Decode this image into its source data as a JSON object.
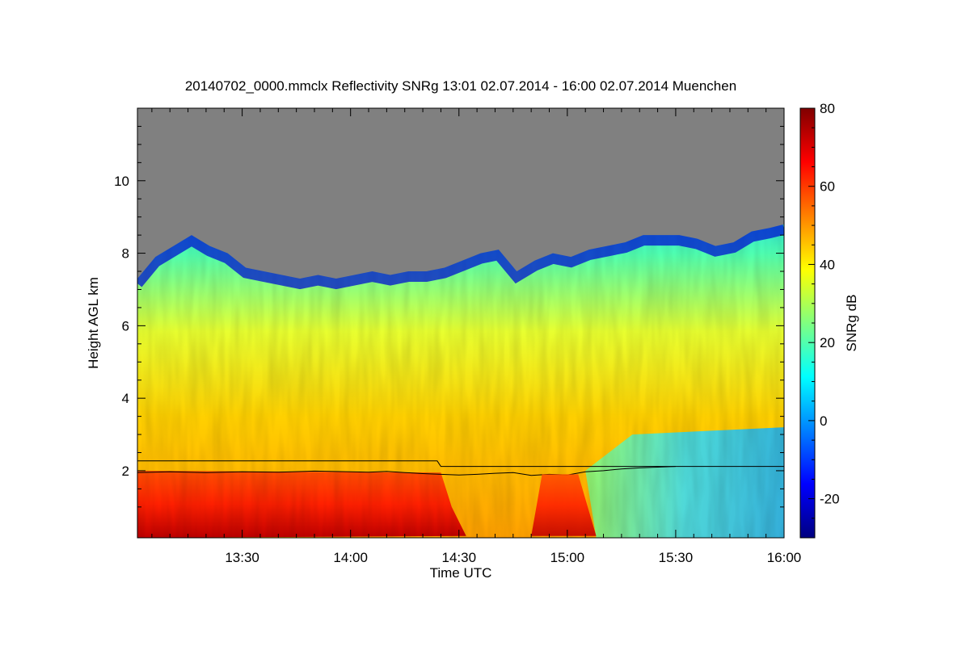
{
  "title": "20140702_0000.mmclx Reflectivity SNRg   13:01 02.07.2014 - 16:00 02.07.2014 Muenchen",
  "colors": {
    "no_signal_gray": "#808080",
    "colormap": [
      "#000080",
      "#0000ff",
      "#0080ff",
      "#00ffff",
      "#80ff80",
      "#ffff00",
      "#ff8000",
      "#ff0000",
      "#800000"
    ]
  },
  "chart_data": {
    "type": "heatmap",
    "xlabel": "Time UTC",
    "ylabel": "Height AGL km",
    "x_range": [
      "13:01",
      "16:00"
    ],
    "xlim_minutes": [
      781,
      960
    ],
    "x_ticks": [
      {
        "minute": 810,
        "label": "13:30"
      },
      {
        "minute": 840,
        "label": "14:00"
      },
      {
        "minute": 870,
        "label": "14:30"
      },
      {
        "minute": 900,
        "label": "15:00"
      },
      {
        "minute": 930,
        "label": "15:30"
      },
      {
        "minute": 960,
        "label": "16:00"
      }
    ],
    "ylim": [
      0.15,
      12
    ],
    "y_ticks": [
      {
        "value": 2,
        "label": "2"
      },
      {
        "value": 4,
        "label": "4"
      },
      {
        "value": 6,
        "label": "6"
      },
      {
        "value": 8,
        "label": "8"
      },
      {
        "value": 10,
        "label": "10"
      }
    ],
    "colorbar": {
      "label": "SNRg dB",
      "range": [
        -30,
        80
      ],
      "ticks": [
        {
          "value": -20,
          "label": "-20"
        },
        {
          "value": 0,
          "label": "0"
        },
        {
          "value": 20,
          "label": "20"
        },
        {
          "value": 40,
          "label": "40"
        },
        {
          "value": 60,
          "label": "60"
        },
        {
          "value": 80,
          "label": "80"
        }
      ]
    },
    "echo_top_km": [
      [
        781,
        7.3
      ],
      [
        786,
        7.9
      ],
      [
        791,
        8.2
      ],
      [
        796,
        8.5
      ],
      [
        801,
        8.2
      ],
      [
        806,
        8.0
      ],
      [
        811,
        7.6
      ],
      [
        816,
        7.5
      ],
      [
        821,
        7.4
      ],
      [
        826,
        7.3
      ],
      [
        831,
        7.4
      ],
      [
        836,
        7.3
      ],
      [
        841,
        7.4
      ],
      [
        846,
        7.5
      ],
      [
        851,
        7.4
      ],
      [
        856,
        7.5
      ],
      [
        861,
        7.5
      ],
      [
        866,
        7.6
      ],
      [
        871,
        7.8
      ],
      [
        876,
        8.0
      ],
      [
        881,
        8.1
      ],
      [
        886,
        7.5
      ],
      [
        891,
        7.8
      ],
      [
        896,
        8.0
      ],
      [
        901,
        7.9
      ],
      [
        906,
        8.1
      ],
      [
        911,
        8.2
      ],
      [
        916,
        8.3
      ],
      [
        921,
        8.5
      ],
      [
        926,
        8.5
      ],
      [
        931,
        8.5
      ],
      [
        936,
        8.4
      ],
      [
        941,
        8.2
      ],
      [
        946,
        8.3
      ],
      [
        951,
        8.6
      ],
      [
        956,
        8.7
      ],
      [
        960,
        8.8
      ]
    ],
    "lines": [
      {
        "points": [
          [
            781,
            2.27
          ],
          [
            864,
            2.27
          ],
          [
            865,
            2.12
          ],
          [
            960,
            2.12
          ]
        ]
      },
      {
        "points": [
          [
            781,
            1.95
          ],
          [
            790,
            1.97
          ],
          [
            800,
            1.95
          ],
          [
            810,
            1.97
          ],
          [
            820,
            1.96
          ],
          [
            830,
            1.99
          ],
          [
            840,
            1.97
          ],
          [
            845,
            1.96
          ],
          [
            850,
            1.98
          ],
          [
            855,
            1.95
          ],
          [
            860,
            1.92
          ],
          [
            865,
            1.9
          ],
          [
            870,
            1.88
          ],
          [
            875,
            1.9
          ],
          [
            880,
            1.93
          ],
          [
            885,
            1.95
          ],
          [
            890,
            1.87
          ],
          [
            895,
            1.9
          ],
          [
            900,
            1.88
          ],
          [
            905,
            1.97
          ],
          [
            910,
            2.0
          ],
          [
            915,
            2.05
          ],
          [
            920,
            2.08
          ],
          [
            925,
            2.1
          ],
          [
            930,
            2.12
          ]
        ]
      }
    ]
  }
}
